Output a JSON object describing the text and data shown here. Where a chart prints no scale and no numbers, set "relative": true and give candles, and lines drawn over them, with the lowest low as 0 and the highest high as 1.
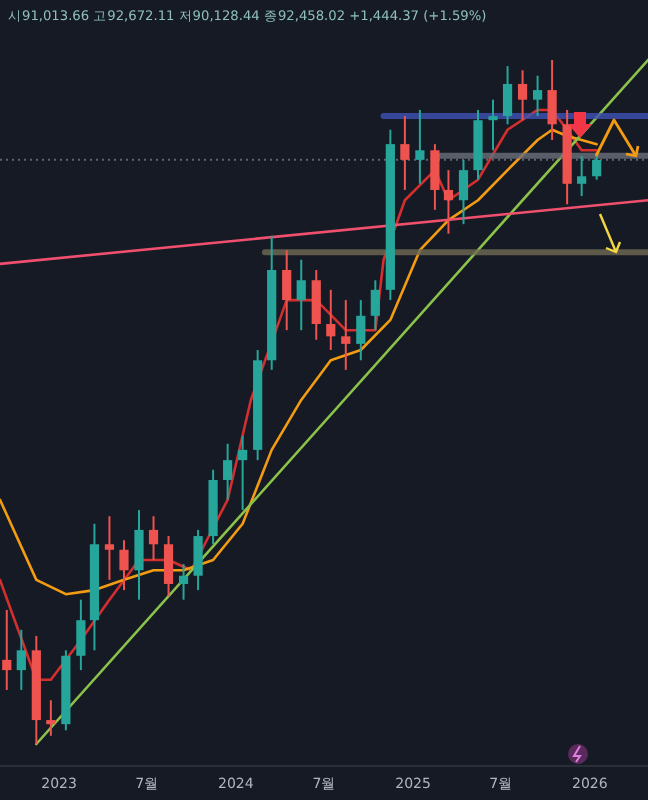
{
  "chart_data": {
    "type": "candlestick",
    "relative": true,
    "annotations": [
      "시91,013.66 고92,672.11 저90,128.44 종92,458.02 +1,444.37 (+1.59%)"
    ],
    "x": [
      "2022-09-15",
      "2022-10-15",
      "2022-11-15",
      "2022-12-15",
      "2023-01-15",
      "2023-02-15",
      "2023-03-15",
      "2023-04-15",
      "2023-05-15",
      "2023-06-15",
      "2023-07-15",
      "2023-08-15",
      "2023-09-15",
      "2023-10-15",
      "2023-11-15",
      "2023-12-15",
      "2024-01-15",
      "2024-02-15",
      "2024-03-15",
      "2024-04-15",
      "2024-05-15",
      "2024-06-15",
      "2024-07-15",
      "2024-08-15",
      "2024-09-15",
      "2024-10-15",
      "2024-11-15",
      "2024-12-15",
      "2025-01-15",
      "2025-02-15",
      "2025-03-15",
      "2025-04-15",
      "2025-05-15",
      "2025-06-15",
      "2025-07-15",
      "2025-08-15",
      "2025-09-15",
      "2025-10-15",
      "2025-11-15",
      "2025-12-15",
      "2026-01-15"
    ],
    "ohlc": [
      [
        0.123,
        0.196,
        0.079,
        0.108
      ],
      [
        0.108,
        0.167,
        0.079,
        0.137
      ],
      [
        0.137,
        0.158,
        0,
        0.035
      ],
      [
        0.035,
        0.064,
        0.012,
        0.029
      ],
      [
        0.029,
        0.137,
        0.02,
        0.129
      ],
      [
        0.129,
        0.211,
        0.108,
        0.181
      ],
      [
        0.181,
        0.322,
        0.137,
        0.292
      ],
      [
        0.292,
        0.333,
        0.24,
        0.284
      ],
      [
        0.284,
        0.298,
        0.225,
        0.254
      ],
      [
        0.254,
        0.342,
        0.211,
        0.313
      ],
      [
        0.313,
        0.333,
        0.269,
        0.292
      ],
      [
        0.292,
        0.304,
        0.216,
        0.234
      ],
      [
        0.234,
        0.263,
        0.211,
        0.246
      ],
      [
        0.246,
        0.313,
        0.225,
        0.304
      ],
      [
        0.304,
        0.401,
        0.292,
        0.386
      ],
      [
        0.386,
        0.439,
        0.357,
        0.415
      ],
      [
        0.415,
        0.45,
        0.342,
        0.43
      ],
      [
        0.43,
        0.576,
        0.415,
        0.561
      ],
      [
        0.561,
        0.743,
        0.547,
        0.693
      ],
      [
        0.693,
        0.722,
        0.605,
        0.649
      ],
      [
        0.649,
        0.708,
        0.605,
        0.678
      ],
      [
        0.678,
        0.693,
        0.591,
        0.614
      ],
      [
        0.614,
        0.664,
        0.576,
        0.596
      ],
      [
        0.596,
        0.649,
        0.547,
        0.585
      ],
      [
        0.585,
        0.649,
        0.561,
        0.626
      ],
      [
        0.626,
        0.678,
        0.605,
        0.664
      ],
      [
        0.664,
        0.898,
        0.649,
        0.877
      ],
      [
        0.877,
        0.918,
        0.81,
        0.854
      ],
      [
        0.854,
        0.927,
        0.819,
        0.868
      ],
      [
        0.868,
        0.877,
        0.781,
        0.81
      ],
      [
        0.81,
        0.839,
        0.746,
        0.795
      ],
      [
        0.795,
        0.854,
        0.76,
        0.839
      ],
      [
        0.839,
        0.927,
        0.825,
        0.912
      ],
      [
        0.912,
        0.942,
        0.868,
        0.918
      ],
      [
        0.918,
        0.991,
        0.906,
        0.965
      ],
      [
        0.965,
        0.985,
        0.912,
        0.942
      ],
      [
        0.942,
        0.977,
        0.918,
        0.956
      ],
      [
        0.956,
        1,
        0.883,
        0.906
      ],
      [
        0.906,
        0.927,
        0.789,
        0.819
      ],
      [
        0.819,
        0.86,
        0.801,
        0.83
      ],
      [
        0.83,
        0.865,
        0.825,
        0.854
      ]
    ],
    "series": [
      {
        "type": "line",
        "color": "#d32f2f",
        "x": [
          "2022-09-01",
          "2022-11-15",
          "2022-12-15",
          "2023-02-15",
          "2023-04-15",
          "2023-06-15",
          "2023-08-15",
          "2023-10-01",
          "2023-12-15",
          "2024-02-01",
          "2024-04-15",
          "2024-06-15",
          "2024-08-15",
          "2024-10-15",
          "2024-11-01",
          "2024-12-15",
          "2025-02-15",
          "2025-03-15",
          "2025-05-15",
          "2025-07-15",
          "2025-09-15",
          "2025-10-15",
          "2025-11-15",
          "2025-12-15",
          "2026-01-15"
        ],
        "values": [
          0.24,
          0.094,
          0.094,
          0.152,
          0.211,
          0.269,
          0.269,
          0.254,
          0.357,
          0.503,
          0.649,
          0.649,
          0.605,
          0.605,
          0.708,
          0.795,
          0.839,
          0.795,
          0.825,
          0.898,
          0.927,
          0.927,
          0.898,
          0.868,
          0.868
        ]
      },
      {
        "type": "line",
        "color": "#f39c12",
        "x": [
          "2022-09-01",
          "2022-11-15",
          "2023-01-15",
          "2023-03-15",
          "2023-05-15",
          "2023-07-15",
          "2023-09-15",
          "2023-11-15",
          "2024-01-15",
          "2024-03-15",
          "2024-05-15",
          "2024-07-15",
          "2024-09-15",
          "2024-11-15",
          "2025-01-15",
          "2025-03-15",
          "2025-05-15",
          "2025-07-15",
          "2025-09-15",
          "2025-10-15",
          "2025-11-15",
          "2025-12-15",
          "2026-01-15"
        ],
        "values": [
          0.357,
          0.24,
          0.219,
          0.225,
          0.24,
          0.254,
          0.254,
          0.269,
          0.322,
          0.43,
          0.503,
          0.561,
          0.576,
          0.62,
          0.722,
          0.766,
          0.795,
          0.839,
          0.883,
          0.898,
          0.889,
          0.883,
          0.877
        ]
      },
      {
        "type": "line",
        "color": "#8bc34a",
        "x": [
          "2022-11-15",
          "2026-05-01"
        ],
        "values": [
          0,
          1
        ]
      },
      {
        "type": "line",
        "color": "#f0506e",
        "x": [
          "2022-09-01",
          "2026-05-01"
        ],
        "values": [
          0.702,
          0.795
        ]
      },
      {
        "type": "line",
        "color": "#3f51b5",
        "x": [
          "2024-11-01",
          "2026-05-01"
        ],
        "values": [
          0.918,
          0.918
        ]
      },
      {
        "type": "line",
        "color": "#6b6f7a",
        "x": [
          "2025-02-15",
          "2026-05-01"
        ],
        "values": [
          0.86,
          0.86
        ]
      },
      {
        "type": "line",
        "color": "#6f6a52",
        "x": [
          "2024-03-01",
          "2026-05-01"
        ],
        "values": [
          0.719,
          0.719
        ]
      }
    ],
    "ref_lines": [
      {
        "axis": "y",
        "value": 0.854,
        "color": "#5d6470",
        "line_style": "dotted"
      }
    ],
    "xlim": [
      "2022-09-01",
      "2026-05-01"
    ],
    "xticks": [
      {
        "value": "2023-01-01",
        "label": "2023"
      },
      {
        "value": "2023-07-01",
        "label": "7월"
      },
      {
        "value": "2024-01-01",
        "label": "2024"
      },
      {
        "value": "2024-07-01",
        "label": "7월"
      },
      {
        "value": "2025-01-01",
        "label": "2025"
      },
      {
        "value": "2025-07-01",
        "label": "7월"
      },
      {
        "value": "2026-01-01",
        "label": "2026"
      }
    ]
  }
}
